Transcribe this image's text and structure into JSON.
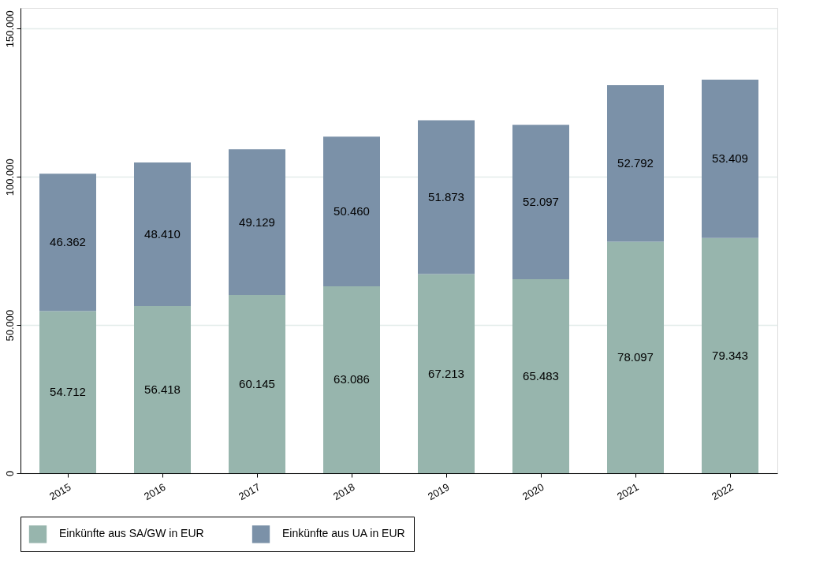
{
  "chart_data": {
    "type": "bar",
    "stacked": true,
    "categories": [
      "2015",
      "2016",
      "2017",
      "2018",
      "2019",
      "2020",
      "2021",
      "2022"
    ],
    "series": [
      {
        "name": "Einkünfte aus SA/GW in EUR",
        "color": "#97b5ad",
        "values": [
          54712,
          56418,
          60145,
          63086,
          67213,
          65483,
          78097,
          79343
        ],
        "value_labels": [
          "54.712",
          "56.418",
          "60.145",
          "63.086",
          "67.213",
          "65.483",
          "78.097",
          "79.343"
        ]
      },
      {
        "name": "Einkünfte aus UA in EUR",
        "color": "#7b91a8",
        "values": [
          46362,
          48410,
          49129,
          50460,
          51873,
          52097,
          52792,
          53409
        ],
        "value_labels": [
          "46.362",
          "48.410",
          "49.129",
          "50.460",
          "51.873",
          "52.097",
          "52.792",
          "53.409"
        ]
      }
    ],
    "ylim": [
      0,
      157000
    ],
    "yticks": [
      0,
      {
        "value": 50000,
        "label": "50.000"
      },
      {
        "value": 100000,
        "label": "100.000"
      },
      {
        "value": 150000,
        "label": "150.000"
      }
    ],
    "grid": "y",
    "legend": "bottom"
  }
}
